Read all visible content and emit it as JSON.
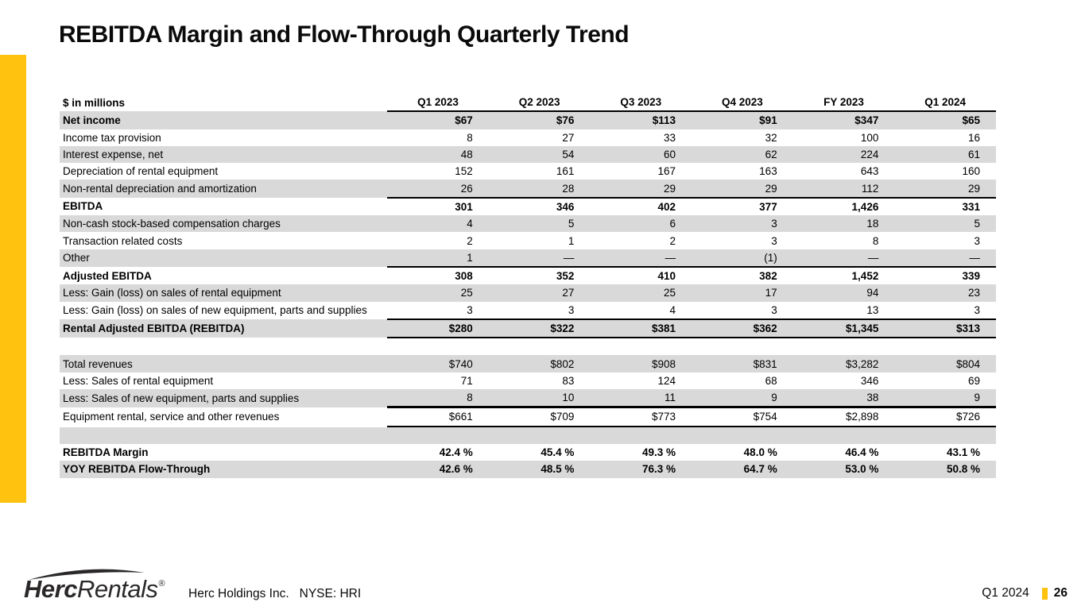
{
  "slide": {
    "title": "REBITDA Margin and Flow-Through Quarterly Trend",
    "accent_color": "#FFC20E"
  },
  "table": {
    "unit_label": "$ in millions",
    "columns": [
      "Q1 2023",
      "Q2 2023",
      "Q3 2023",
      "Q4 2023",
      "FY 2023",
      "Q1 2024"
    ],
    "rows": [
      {
        "label": "Net income",
        "values": [
          "$67",
          "$76",
          "$113",
          "$91",
          "$347",
          "$65"
        ],
        "bold": true,
        "shaded": true
      },
      {
        "label": "Income tax provision",
        "values": [
          "8",
          "27",
          "33",
          "32",
          "100",
          "16"
        ]
      },
      {
        "label": "Interest expense, net",
        "values": [
          "48",
          "54",
          "60",
          "62",
          "224",
          "61"
        ],
        "shaded": true
      },
      {
        "label": "Depreciation of rental equipment",
        "values": [
          "152",
          "161",
          "167",
          "163",
          "643",
          "160"
        ]
      },
      {
        "label": "Non-rental depreciation and amortization",
        "values": [
          "26",
          "28",
          "29",
          "29",
          "112",
          "29"
        ],
        "shaded": true,
        "rule": "normal"
      },
      {
        "label": "EBITDA",
        "values": [
          "301",
          "346",
          "402",
          "377",
          "1,426",
          "331"
        ],
        "bold": true
      },
      {
        "label": "Non-cash stock-based compensation charges",
        "values": [
          "4",
          "5",
          "6",
          "3",
          "18",
          "5"
        ],
        "shaded": true
      },
      {
        "label": "Transaction related costs",
        "values": [
          "2",
          "1",
          "2",
          "3",
          "8",
          "3"
        ]
      },
      {
        "label": "Other",
        "values": [
          "1",
          "—",
          "—",
          "(1)",
          "—",
          "—"
        ],
        "shaded": true,
        "rule": "normal"
      },
      {
        "label": "Adjusted EBITDA",
        "values": [
          "308",
          "352",
          "410",
          "382",
          "1,452",
          "339"
        ],
        "bold": true
      },
      {
        "label": "Less: Gain (loss) on sales of rental equipment",
        "values": [
          "25",
          "27",
          "25",
          "17",
          "94",
          "23"
        ],
        "shaded": true
      },
      {
        "label": "Less: Gain (loss) on sales of new equipment, parts and supplies",
        "values": [
          "3",
          "3",
          "4",
          "3",
          "13",
          "3"
        ],
        "rule": "normal"
      },
      {
        "label": "Rental Adjusted EBITDA (REBITDA)",
        "values": [
          "$280",
          "$322",
          "$381",
          "$362",
          "$1,345",
          "$313"
        ],
        "bold": true,
        "shaded": true,
        "rule": "normal"
      },
      {
        "spacer": true
      },
      {
        "label": "Total revenues",
        "values": [
          "$740",
          "$802",
          "$908",
          "$831",
          "$3,282",
          "$804"
        ],
        "shaded": true
      },
      {
        "label": "Less: Sales of rental equipment",
        "values": [
          "71",
          "83",
          "124",
          "68",
          "346",
          "69"
        ]
      },
      {
        "label": "Less: Sales of new equipment, parts and supplies",
        "values": [
          "8",
          "10",
          "11",
          "9",
          "38",
          "9"
        ],
        "shaded": true,
        "rule": "thick"
      },
      {
        "label": "Equipment rental, service and other revenues",
        "values": [
          "$661",
          "$709",
          "$773",
          "$754",
          "$2,898",
          "$726"
        ],
        "rule": "normal"
      },
      {
        "spacer": true,
        "shaded": true
      },
      {
        "label": "REBITDA Margin",
        "values": [
          "42.4 %",
          "45.4 %",
          "49.3 %",
          "48.0 %",
          "46.4 %",
          "43.1 %"
        ],
        "bold": true
      },
      {
        "label": "YOY REBITDA Flow-Through",
        "values": [
          "42.6 %",
          "48.5 %",
          "76.3 %",
          "64.7 %",
          "53.0 %",
          "50.8 %"
        ],
        "bold": true,
        "shaded": true
      }
    ]
  },
  "footer": {
    "logo_bold": "Herc",
    "logo_regular": "Rentals",
    "logo_reg_mark": "®",
    "company": "Herc Holdings Inc.",
    "ticker": "NYSE: HRI",
    "period": "Q1 2024",
    "page_number": "26"
  }
}
